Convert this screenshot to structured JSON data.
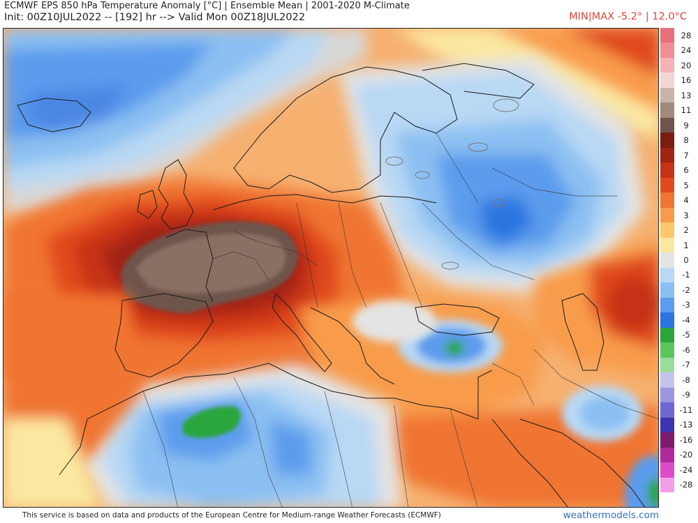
{
  "header": {
    "title": "ECMWF EPS 850 hPa Temperature Anomaly [°C] | Ensemble Mean | 2001-2020 M-Climate",
    "init_line": "Init: 00Z10JUL2022 -- [192] hr --> Valid Mon 00Z18JUL2022",
    "minmax": "MIN|MAX -5.2° | 12.0°C"
  },
  "colorbar": {
    "levels": [
      {
        "label": "28",
        "color": "#e8707a"
      },
      {
        "label": "24",
        "color": "#f08e96"
      },
      {
        "label": "20",
        "color": "#f5b3b8"
      },
      {
        "label": "16",
        "color": "#f2d6d6"
      },
      {
        "label": "13",
        "color": "#c8b4ac"
      },
      {
        "label": "11",
        "color": "#a08a80"
      },
      {
        "label": "9",
        "color": "#6e544c"
      },
      {
        "label": "8",
        "color": "#7a1c12"
      },
      {
        "label": "7",
        "color": "#a02414"
      },
      {
        "label": "6",
        "color": "#c63218"
      },
      {
        "label": "5",
        "color": "#e04a1e"
      },
      {
        "label": "4",
        "color": "#f07432"
      },
      {
        "label": "3",
        "color": "#f89c4c"
      },
      {
        "label": "2",
        "color": "#fcc86c"
      },
      {
        "label": "1",
        "color": "#fbe8a0"
      },
      {
        "label": "0",
        "color": "#e4e4e4"
      },
      {
        "label": "-1",
        "color": "#b8d8f4"
      },
      {
        "label": "-2",
        "color": "#8cc0f2"
      },
      {
        "label": "-3",
        "color": "#5c9ced"
      },
      {
        "label": "-4",
        "color": "#2c74e0"
      },
      {
        "label": "-5",
        "color": "#2ca63c"
      },
      {
        "label": "-6",
        "color": "#5ac65c"
      },
      {
        "label": "-7",
        "color": "#9adc9a"
      },
      {
        "label": "-8",
        "color": "#c4c4ec"
      },
      {
        "label": "-9",
        "color": "#9a96e0"
      },
      {
        "label": "-11",
        "color": "#6e68d0"
      },
      {
        "label": "-13",
        "color": "#3c34b0"
      },
      {
        "label": "-16",
        "color": "#7c1c6c"
      },
      {
        "label": "-20",
        "color": "#b02a9c"
      },
      {
        "label": "-24",
        "color": "#dc4cc8"
      },
      {
        "label": "-28",
        "color": "#f49ee8"
      }
    ]
  },
  "footer": {
    "attribution": "This service is based on data and products of the European Centre for Medium-range Weather Forecasts (ECMWF)",
    "brand": "weathermodels.com"
  }
}
